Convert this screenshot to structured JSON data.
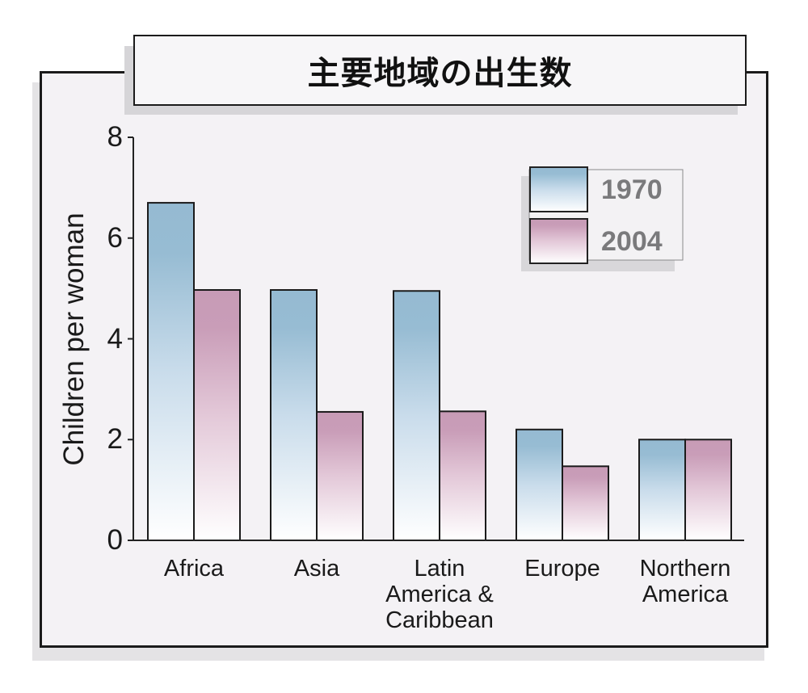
{
  "chart_data": {
    "type": "bar",
    "title": "主要地域の出生数",
    "xlabel": "",
    "ylabel": "Children per woman",
    "ylim": [
      0,
      8
    ],
    "yticks": [
      0,
      2,
      4,
      6,
      8
    ],
    "categories": [
      [
        "Africa"
      ],
      [
        "Asia"
      ],
      [
        "Latin",
        "America &",
        "Caribbean"
      ],
      [
        "Europe"
      ],
      [
        "Northern",
        "America"
      ]
    ],
    "series": [
      {
        "name": "1970",
        "values": [
          6.7,
          4.97,
          4.95,
          2.2,
          2.0
        ],
        "color": "#95bad2"
      },
      {
        "name": "2004",
        "values": [
          4.97,
          2.55,
          2.56,
          1.47,
          2.0
        ],
        "color": "#c79bb6"
      }
    ],
    "legend_position": "top-right",
    "grid": false
  }
}
